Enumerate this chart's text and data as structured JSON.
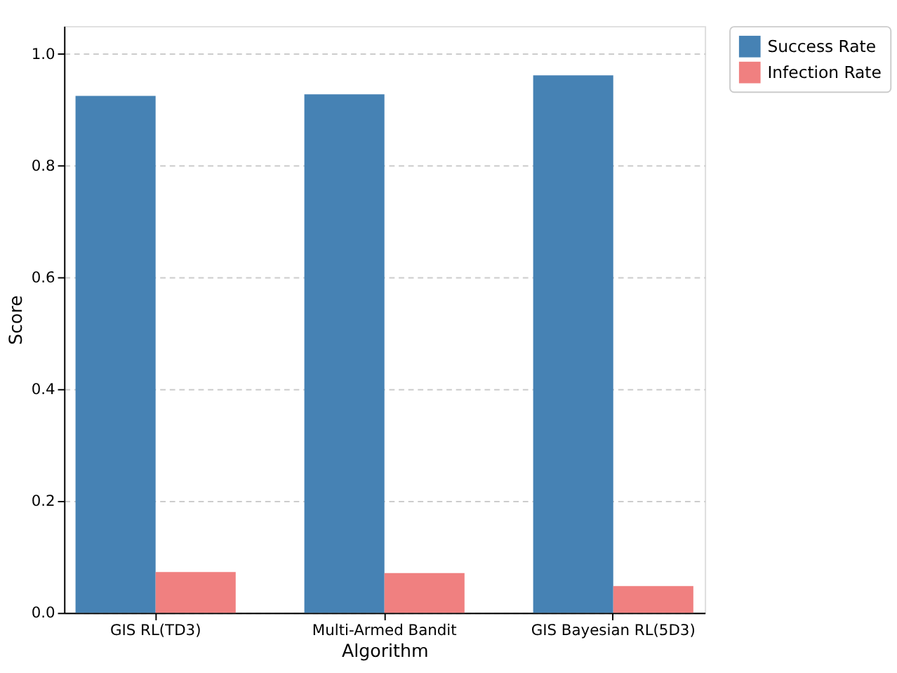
{
  "chart_data": {
    "type": "bar",
    "xlabel": "Algorithm",
    "ylabel": "Score",
    "categories": [
      "GIS RL(TD3)",
      "Multi-Armed Bandit",
      "GIS Bayesian RL(5D3)"
    ],
    "series": [
      {
        "name": "Success Rate",
        "color": "#4682b4",
        "values": [
          0.925,
          0.928,
          0.962
        ]
      },
      {
        "name": "Infection Rate",
        "color": "#f08080",
        "values": [
          0.073,
          0.071,
          0.048
        ]
      }
    ],
    "ylim": [
      0,
      1.05
    ],
    "yticks": [
      {
        "value": 0,
        "label": "0.0"
      },
      0.2,
      0.4,
      0.6,
      0.8,
      {
        "value": 1,
        "label": "1.0"
      }
    ],
    "grid": "y",
    "legend": "right"
  }
}
